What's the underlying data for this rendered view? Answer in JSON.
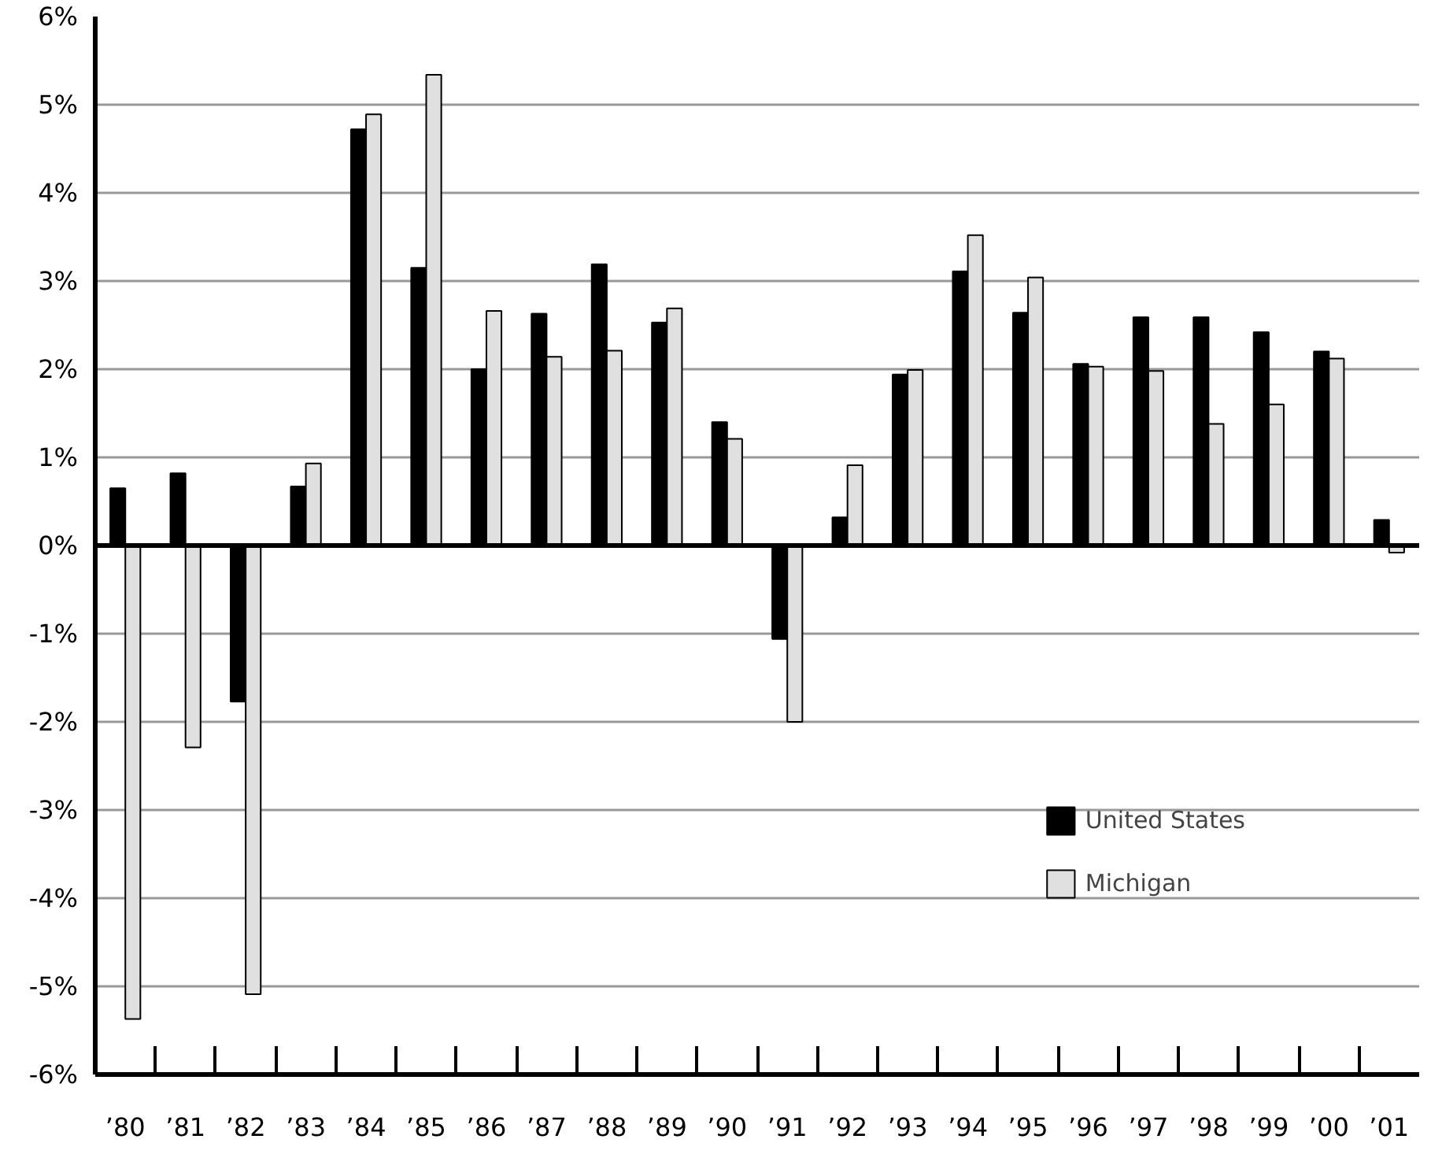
{
  "chart_data": {
    "type": "bar",
    "categories": [
      "’80",
      "’81",
      "’82",
      "’83",
      "’84",
      "’85",
      "’86",
      "’87",
      "’88",
      "’89",
      "’90",
      "’91",
      "’92",
      "’93",
      "’94",
      "’95",
      "’96",
      "’97",
      "’98",
      "’99",
      "’00",
      "’01"
    ],
    "series": [
      {
        "name": "United States",
        "color": "#000000",
        "values": [
          0.65,
          0.82,
          -1.77,
          0.67,
          4.72,
          3.15,
          2.0,
          2.63,
          3.19,
          2.53,
          1.4,
          -1.06,
          0.32,
          1.94,
          3.11,
          2.64,
          2.06,
          2.59,
          2.59,
          2.42,
          2.2,
          0.29
        ]
      },
      {
        "name": "Michigan",
        "color": "#e0e0e0",
        "values": [
          -5.37,
          -2.29,
          -5.09,
          0.93,
          4.89,
          5.34,
          2.66,
          2.14,
          2.21,
          2.69,
          1.21,
          -2.0,
          0.91,
          1.99,
          3.52,
          3.04,
          2.03,
          1.98,
          1.38,
          1.6,
          2.12,
          -0.08
        ]
      }
    ],
    "ylim": [
      -6,
      6
    ],
    "yticks": [
      {
        "value": -6,
        "label": "-6%"
      },
      {
        "value": -5,
        "label": "-5%"
      },
      {
        "value": -4,
        "label": "-4%"
      },
      {
        "value": -3,
        "label": "-3%"
      },
      {
        "value": -2,
        "label": "-2%"
      },
      {
        "value": -1,
        "label": "-1%"
      },
      {
        "value": 0,
        "label": "0%"
      },
      {
        "value": 1,
        "label": "1%"
      },
      {
        "value": 2,
        "label": "2%"
      },
      {
        "value": 3,
        "label": "3%"
      },
      {
        "value": 4,
        "label": "4%"
      },
      {
        "value": 5,
        "label": "5%"
      },
      {
        "value": 6,
        "label": "6%"
      }
    ],
    "ref_lines": [
      {
        "axis": "y",
        "value": 0,
        "color": "#000000"
      }
    ],
    "grid": "y",
    "legend": "bottom right"
  }
}
